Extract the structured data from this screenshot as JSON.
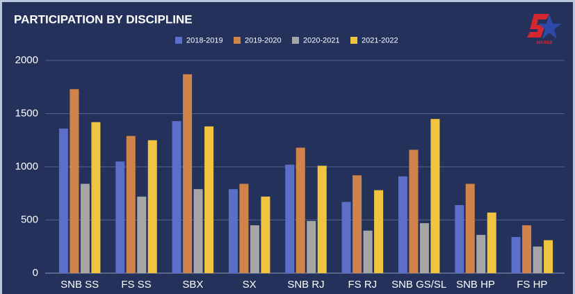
{
  "chart_data": {
    "type": "bar",
    "title": "PARTICIPATION BY DISCIPLINE",
    "logo": "usasa",
    "categories": [
      "SNB SS",
      "FS SS",
      "SBX",
      "SX",
      "SNB RJ",
      "FS RJ",
      "SNB GS/SL",
      "SNB HP",
      "FS HP"
    ],
    "series": [
      {
        "name": "2018-2019",
        "color": "#5b6fc8",
        "values": [
          1360,
          1050,
          1430,
          790,
          1020,
          670,
          910,
          640,
          340
        ]
      },
      {
        "name": "2019-2020",
        "color": "#d0834b",
        "values": [
          1730,
          1290,
          1870,
          840,
          1180,
          920,
          1160,
          840,
          450
        ]
      },
      {
        "name": "2020-2021",
        "color": "#a6a6a6",
        "values": [
          840,
          720,
          790,
          450,
          490,
          400,
          470,
          360,
          250
        ]
      },
      {
        "name": "2021-2022",
        "color": "#f1c440",
        "values": [
          1420,
          1250,
          1380,
          720,
          1010,
          780,
          1450,
          570,
          310
        ]
      }
    ],
    "ylim": [
      0,
      2000
    ],
    "yticks": [
      0,
      500,
      1000,
      1500,
      2000
    ],
    "grid": true,
    "legend": "top"
  }
}
